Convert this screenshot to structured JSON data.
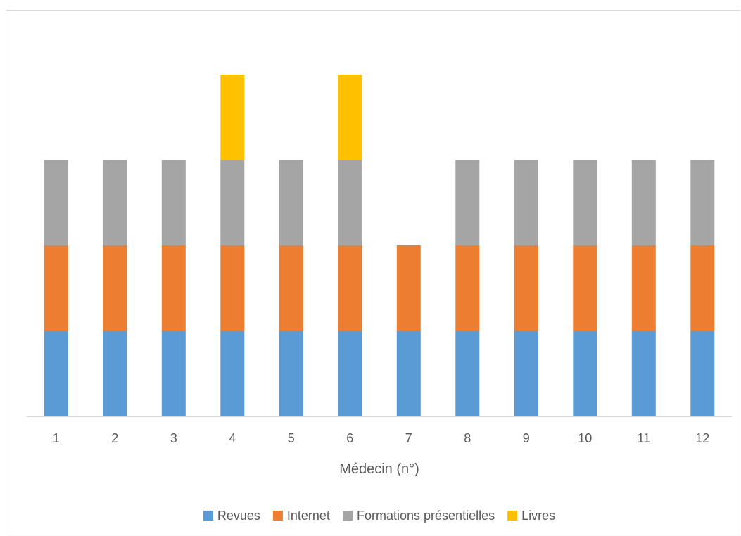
{
  "chart_data": {
    "type": "bar",
    "stacked": true,
    "categories": [
      "1",
      "2",
      "3",
      "4",
      "5",
      "6",
      "7",
      "8",
      "9",
      "10",
      "11",
      "12"
    ],
    "series": [
      {
        "name": "Revues",
        "color": "#5B9BD5",
        "values": [
          1,
          1,
          1,
          1,
          1,
          1,
          1,
          1,
          1,
          1,
          1,
          1
        ]
      },
      {
        "name": "Internet",
        "color": "#ED7D31",
        "values": [
          1,
          1,
          1,
          1,
          1,
          1,
          1,
          1,
          1,
          1,
          1,
          1
        ]
      },
      {
        "name": "Formations présentielles",
        "color": "#A5A5A5",
        "values": [
          1,
          1,
          1,
          1,
          1,
          1,
          0,
          1,
          1,
          1,
          1,
          1
        ]
      },
      {
        "name": "Livres",
        "color": "#FFC000",
        "values": [
          0,
          0,
          0,
          1,
          0,
          1,
          0,
          0,
          0,
          0,
          0,
          0
        ]
      }
    ],
    "title": "",
    "xlabel": "Médecin (n°)",
    "ylabel": "",
    "ylim": [
      0,
      4
    ],
    "grid": false,
    "legend": "bottom"
  }
}
